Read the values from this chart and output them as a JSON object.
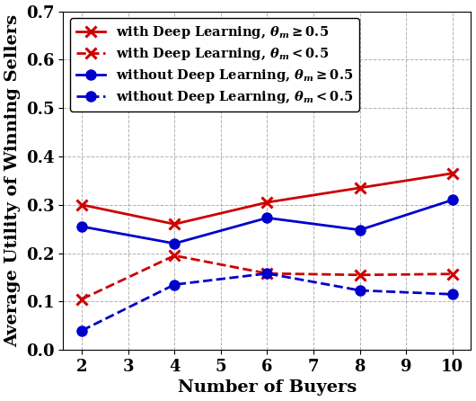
{
  "x": [
    2,
    4,
    6,
    8,
    10
  ],
  "deep_learning_high": [
    0.3,
    0.26,
    0.305,
    0.335,
    0.365
  ],
  "deep_learning_low": [
    0.105,
    0.195,
    0.158,
    0.155,
    0.157
  ],
  "no_deep_learning_high": [
    0.255,
    0.22,
    0.273,
    0.248,
    0.31
  ],
  "no_deep_learning_low": [
    0.04,
    0.135,
    0.158,
    0.123,
    0.115
  ],
  "xlabel": "Number of Buyers",
  "ylabel": "Average Utility of Winning Sellers",
  "ylim": [
    0,
    0.7
  ],
  "yticks": [
    0,
    0.1,
    0.2,
    0.3,
    0.4,
    0.5,
    0.6,
    0.7
  ],
  "xticks": [
    2,
    3,
    4,
    5,
    6,
    7,
    8,
    9,
    10
  ],
  "legend_labels": [
    "with Deep Learning, $\\theta_m \\geq 0.5$",
    "with Deep Learning, $\\theta_m < 0.5$",
    "without Deep Learning, $\\theta_m \\geq 0.5$",
    "without Deep Learning, $\\theta_m < 0.5$"
  ],
  "color_red": "#cc0000",
  "color_blue": "#0000cc",
  "linewidth": 2.0,
  "markersize": 8,
  "tick_fontsize": 13,
  "label_fontsize": 14,
  "legend_fontsize": 10.5
}
